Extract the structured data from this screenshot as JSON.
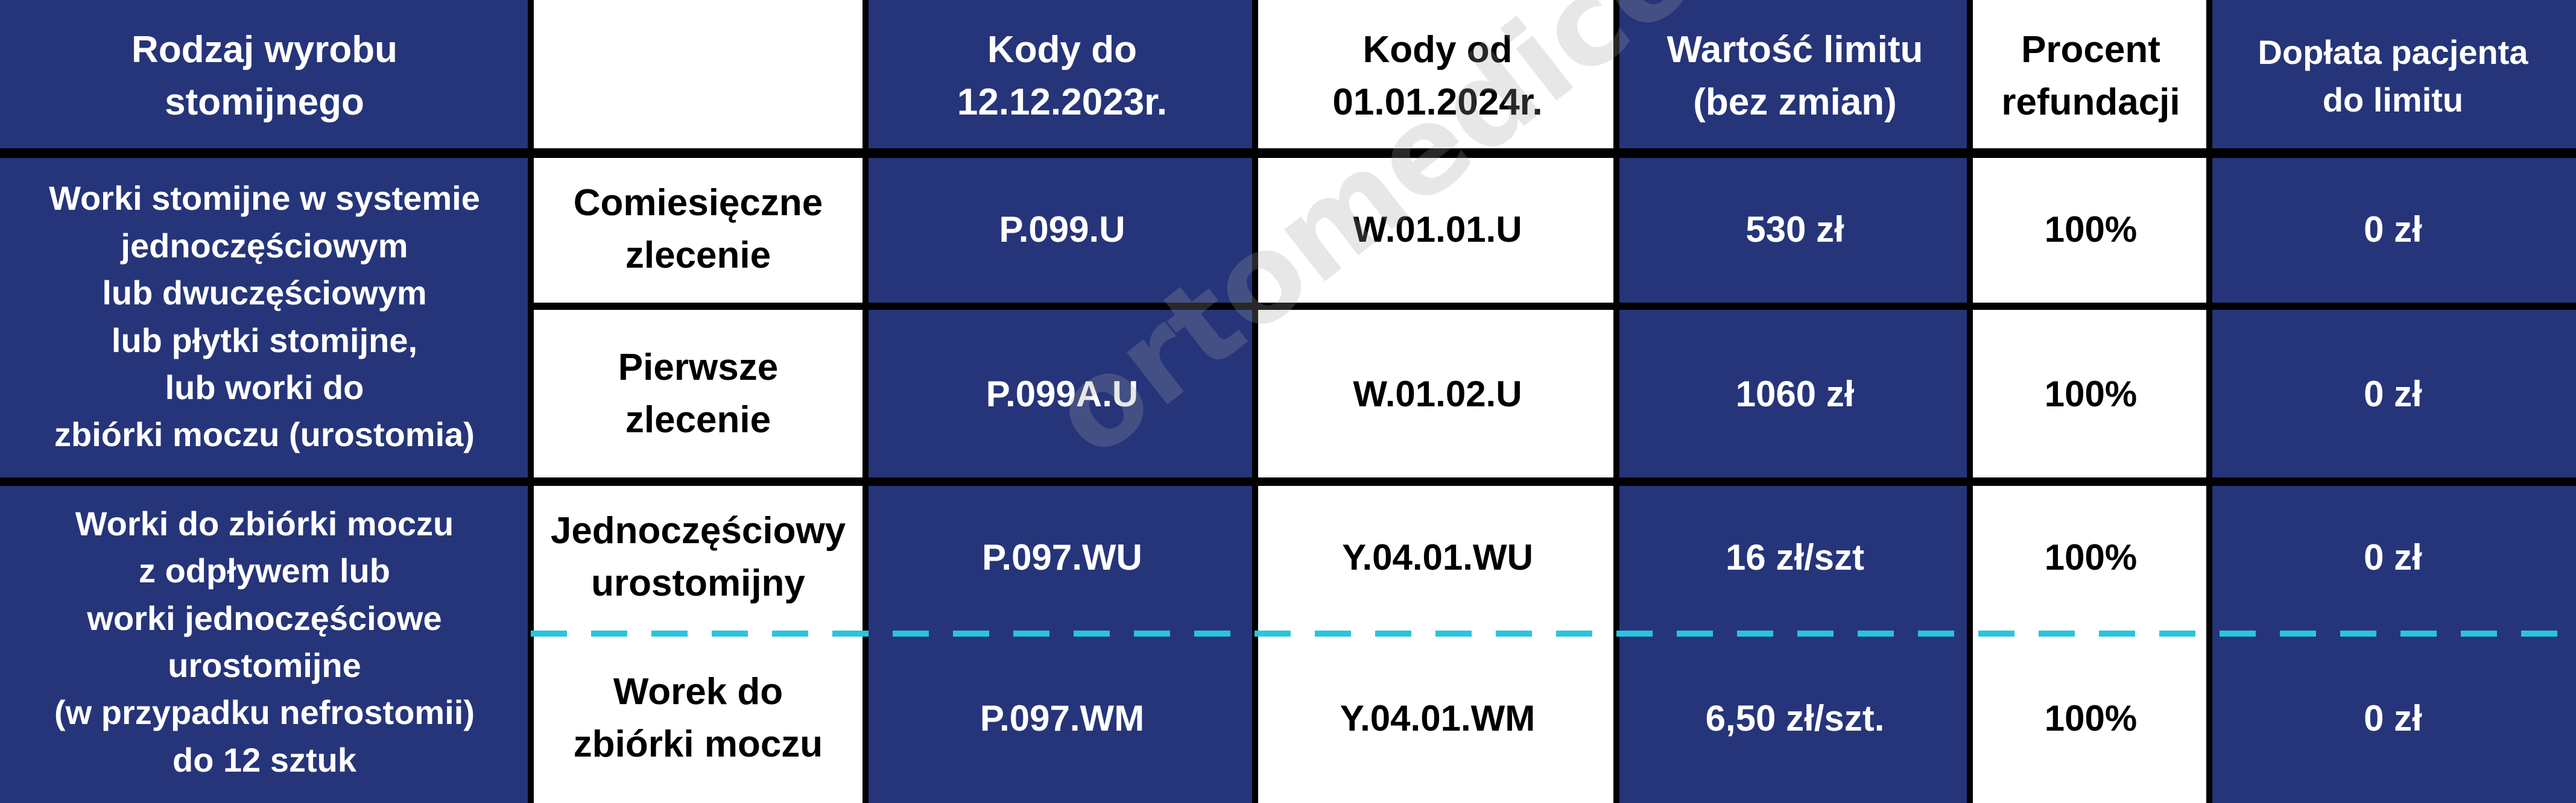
{
  "colors": {
    "blue": "#26357a",
    "white": "#ffffff",
    "dashed_line": "#2ac4de"
  },
  "header": [
    "Rodzaj wyrobu\nstomijnego",
    "",
    "Kody do\n12.12.2023r.",
    "Kody od\n01.01.2024r.",
    "Wartość limitu\n(bez zmian)",
    "Procent\nrefundacji",
    "Dopłata pacjenta\ndo limitu"
  ],
  "groups": [
    "Worki stomijne w systemie\njednoczęściowym\nlub dwuczęściowym\nlub płytki stomijne,\nlub worki do\nzbiórki moczu (urostomia)",
    "Worki do zbiórki moczu\nz odpływem lub\nworki jednoczęściowe\nurostomijne\n(w przypadku nefrostomii)\ndo 12 sztuk"
  ],
  "rows": [
    {
      "type": "Comiesięczne\nzlecenie",
      "code_old": "P.099.U",
      "code_new": "W.01.01.U",
      "limit": "530 zł",
      "percent": "100%",
      "copay": "0 zł"
    },
    {
      "type": "Pierwsze\nzlecenie",
      "code_old": "P.099A.U",
      "code_new": "W.01.02.U",
      "limit": "1060 zł",
      "percent": "100%",
      "copay": "0 zł"
    },
    {
      "type": "Jednoczęściowy\nurostomijny",
      "code_old": "P.097.WU",
      "code_new": "Y.04.01.WU",
      "limit": "16 zł/szt",
      "percent": "100%",
      "copay": "0 zł"
    },
    {
      "type": "Worek do\nzbiórki moczu",
      "code_old": "P.097.WM",
      "code_new": "Y.04.01.WM",
      "limit": "6,50 zł/szt.",
      "percent": "100%",
      "copay": "0 zł"
    }
  ],
  "watermark": "ortomedico.pl"
}
